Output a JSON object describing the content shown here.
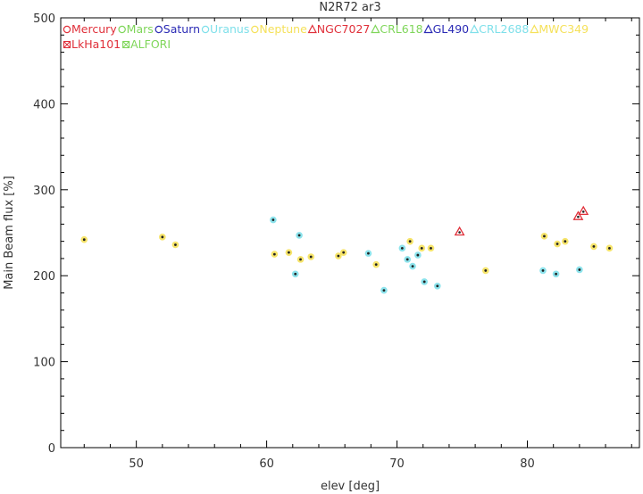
{
  "chart_data": {
    "type": "scatter",
    "title": "N2R72 ar3",
    "xlabel": "elev [deg]",
    "ylabel": "Main Beam flux [%]",
    "xlim": [
      44.2,
      88.6
    ],
    "ylim": [
      0,
      500
    ],
    "xticks": [
      50,
      60,
      70,
      80
    ],
    "yticks": [
      0,
      100,
      200,
      300,
      400,
      500
    ],
    "grid": false,
    "legend_position": "top-left-inside",
    "legend": [
      {
        "name": "Mercury",
        "symbol": "circle",
        "color": "#e0303a"
      },
      {
        "name": "Mars",
        "symbol": "circle",
        "color": "#7fd65a"
      },
      {
        "name": "Saturn",
        "symbol": "circle",
        "color": "#2b2bb5"
      },
      {
        "name": "Uranus",
        "symbol": "circle",
        "color": "#7fe0ea"
      },
      {
        "name": "Neptune",
        "symbol": "circle",
        "color": "#f5e15a"
      },
      {
        "name": "NGC7027",
        "symbol": "triangle",
        "color": "#e0303a"
      },
      {
        "name": "CRL618",
        "symbol": "triangle",
        "color": "#7fd65a"
      },
      {
        "name": "GL490",
        "symbol": "triangle",
        "color": "#2b2bb5"
      },
      {
        "name": "CRL2688",
        "symbol": "triangle",
        "color": "#7fe0ea"
      },
      {
        "name": "MWC349",
        "symbol": "triangle",
        "color": "#f5e15a"
      },
      {
        "name": "LkHa101",
        "symbol": "star",
        "color": "#e0303a"
      },
      {
        "name": "ALFORI",
        "symbol": "star",
        "color": "#7fd65a"
      }
    ],
    "series": [
      {
        "name": "Uranus",
        "symbol": "circle",
        "color": "#7fe0ea",
        "x": [
          60.5,
          62.2,
          62.5,
          67.8,
          69.0,
          70.4,
          70.8,
          71.2,
          71.6,
          72.1,
          73.1,
          81.2,
          82.2,
          84.0
        ],
        "y": [
          265,
          202,
          247,
          226,
          183,
          232,
          219,
          211,
          224,
          193,
          188,
          206,
          202,
          207
        ]
      },
      {
        "name": "Neptune",
        "symbol": "circle",
        "color": "#f5e15a",
        "x": [
          46.0,
          52.0,
          53.0,
          60.6,
          61.7,
          62.6,
          63.4,
          65.5,
          65.9,
          68.4,
          71.0,
          71.9,
          72.6,
          76.8,
          81.3,
          82.3,
          82.9,
          85.1,
          86.3
        ],
        "y": [
          242,
          245,
          236,
          225,
          227,
          219,
          222,
          223,
          227,
          213,
          240,
          232,
          232,
          206,
          246,
          237,
          240,
          234,
          232
        ]
      },
      {
        "name": "NGC7027",
        "symbol": "triangle",
        "color": "#e0303a",
        "x": [
          74.8,
          83.9,
          84.3
        ],
        "y": [
          251,
          269,
          275
        ]
      }
    ]
  }
}
